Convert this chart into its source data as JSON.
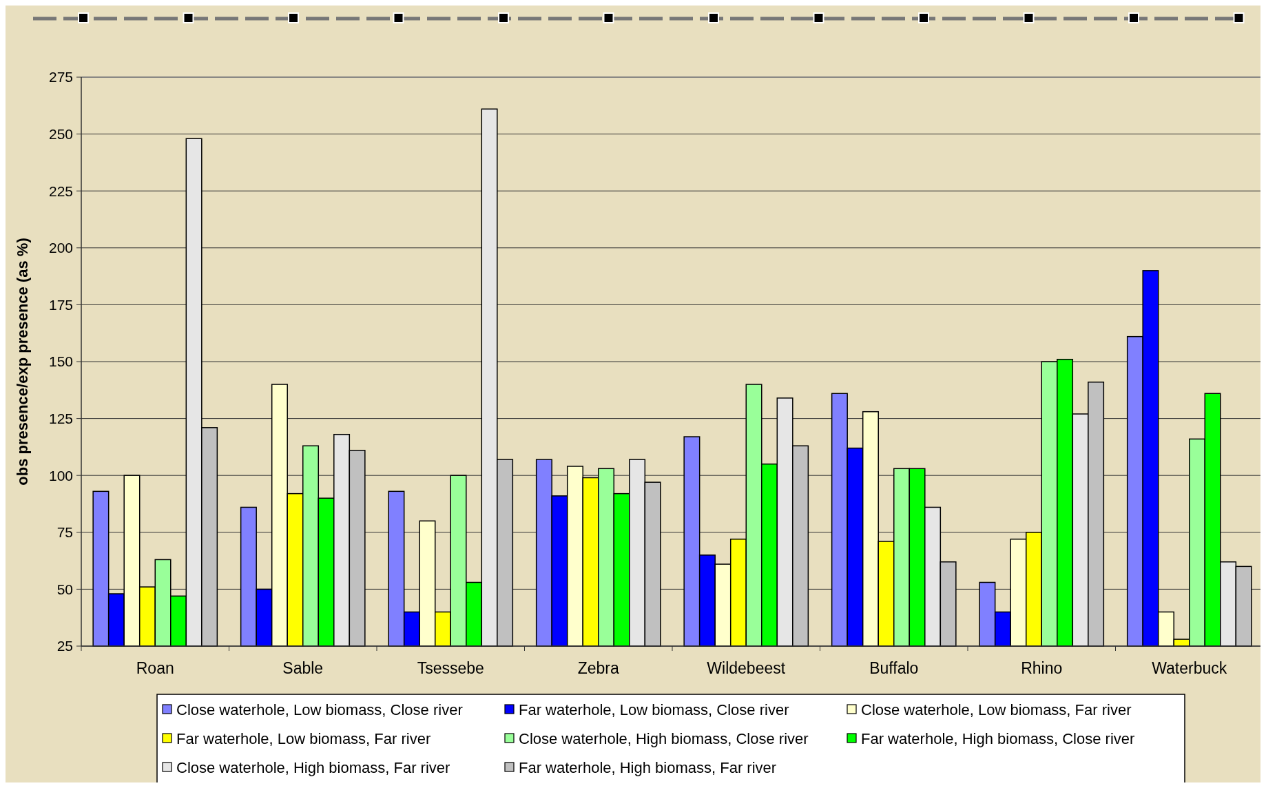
{
  "chart_data": {
    "type": "bar",
    "ylabel": "obs presence/exp presence (as %)",
    "categories": [
      "Roan",
      "Sable",
      "Tsessebe",
      "Zebra",
      "Wildebeest",
      "Buffalo",
      "Rhino",
      "Waterbuck"
    ],
    "series": [
      {
        "name": "Close waterhole, Low biomass, Close river",
        "color": "#8080ff",
        "values": [
          93,
          86,
          93,
          107,
          117,
          136,
          53,
          161
        ]
      },
      {
        "name": "Far waterhole, Low biomass, Close river",
        "color": "#0000ff",
        "values": [
          48,
          50,
          40,
          91,
          65,
          112,
          40,
          190
        ]
      },
      {
        "name": "Close waterhole, Low biomass, Far river",
        "color": "#ffffcc",
        "values": [
          100,
          140,
          80,
          104,
          61,
          128,
          72,
          40
        ]
      },
      {
        "name": "Far waterhole, Low biomass, Far river",
        "color": "#ffff00",
        "values": [
          51,
          92,
          40,
          99,
          72,
          71,
          75,
          28
        ]
      },
      {
        "name": "Close waterhole, High biomass, Close river",
        "color": "#99ff99",
        "values": [
          63,
          113,
          100,
          103,
          140,
          103,
          150,
          116
        ]
      },
      {
        "name": "Far waterhole, High biomass, Close river",
        "color": "#00ff00",
        "values": [
          47,
          90,
          53,
          92,
          105,
          103,
          151,
          136
        ]
      },
      {
        "name": "Close waterhole, High biomass, Far river",
        "color": "#e6e6e6",
        "values": [
          248,
          118,
          261,
          107,
          134,
          86,
          127,
          62
        ]
      },
      {
        "name": "Far waterhole, High biomass, Far river",
        "color": "#c0c0c0",
        "values": [
          121,
          111,
          107,
          97,
          113,
          62,
          141,
          60
        ]
      }
    ],
    "ylim": [
      25,
      275
    ],
    "yticks": [
      25,
      50,
      75,
      100,
      125,
      150,
      175,
      200,
      225,
      250,
      275
    ],
    "grid": "y",
    "legend": "bottom"
  }
}
